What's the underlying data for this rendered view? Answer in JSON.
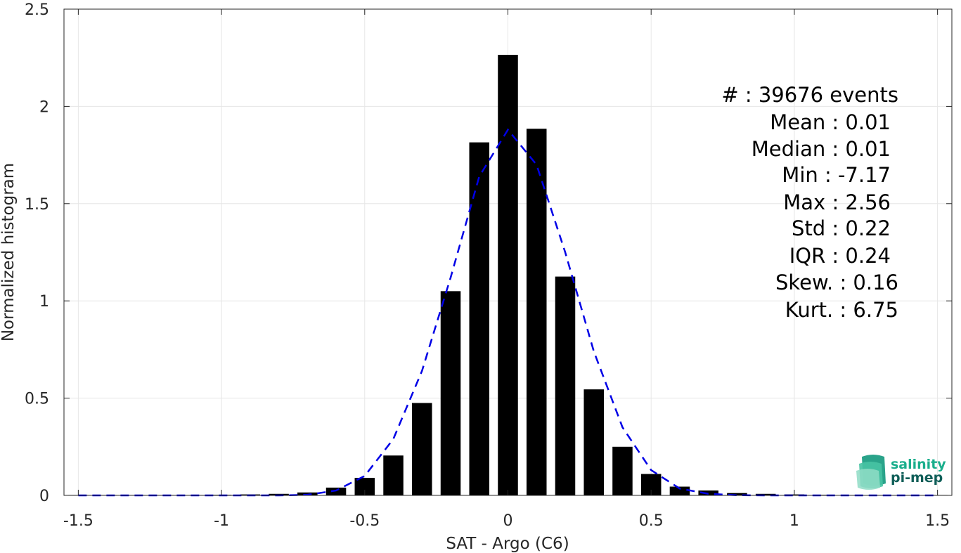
{
  "chart_data": {
    "type": "bar",
    "xlabel": "SAT - Argo (C6)",
    "ylabel": "Normalized histogram",
    "xlim": [
      -1.55,
      1.55
    ],
    "ylim": [
      0,
      2.5
    ],
    "xticks": [
      -1.5,
      -1,
      -0.5,
      0,
      0.5,
      1,
      1.5
    ],
    "xtick_labels": [
      "-1.5",
      "-1",
      "-0.5",
      "0",
      "0.5",
      "1",
      "1.5"
    ],
    "yticks": [
      0,
      0.5,
      1,
      1.5,
      2,
      2.5
    ],
    "ytick_labels": [
      "0",
      "0.5",
      "1",
      "1.5",
      "2",
      "2.5"
    ],
    "grid": true,
    "bar_color": "#000000",
    "bar_width": 0.07,
    "bars": {
      "x": [
        -1.5,
        -1.4,
        -1.3,
        -1.2,
        -1.1,
        -1.0,
        -0.9,
        -0.8,
        -0.7,
        -0.6,
        -0.5,
        -0.4,
        -0.3,
        -0.2,
        -0.1,
        0.0,
        0.1,
        0.2,
        0.3,
        0.4,
        0.5,
        0.6,
        0.7,
        0.8,
        0.9,
        1.0,
        1.1,
        1.2,
        1.3,
        1.4,
        1.5
      ],
      "values": [
        0.002,
        0.002,
        0.002,
        0.002,
        0.002,
        0.003,
        0.005,
        0.008,
        0.015,
        0.04,
        0.09,
        0.205,
        0.475,
        1.05,
        1.815,
        2.265,
        1.885,
        1.125,
        0.545,
        0.25,
        0.11,
        0.045,
        0.025,
        0.012,
        0.008,
        0.005,
        0.003,
        0.002,
        0.002,
        0.002,
        0.002
      ]
    },
    "fit_curve": {
      "style": "dashed",
      "color": "#0000e6",
      "x": [
        -1.5,
        -1.4,
        -1.3,
        -1.2,
        -1.1,
        -1.0,
        -0.9,
        -0.8,
        -0.7,
        -0.6,
        -0.5,
        -0.4,
        -0.3,
        -0.2,
        -0.1,
        0.0,
        0.1,
        0.2,
        0.3,
        0.4,
        0.5,
        0.6,
        0.7,
        0.8,
        0.9,
        1.0,
        1.1,
        1.2,
        1.3,
        1.4,
        1.5
      ],
      "y": [
        0.0,
        0.0,
        0.0,
        0.0,
        0.0,
        0.0,
        0.0,
        0.0,
        0.003,
        0.025,
        0.1,
        0.29,
        0.64,
        1.12,
        1.64,
        1.88,
        1.7,
        1.25,
        0.74,
        0.35,
        0.13,
        0.035,
        0.008,
        0.001,
        0.0,
        0.0,
        0.0,
        0.0,
        0.0,
        0.0,
        0.0
      ]
    }
  },
  "stats": [
    {
      "label": "#  : 39676 events"
    },
    {
      "label": "Mean : 0.01"
    },
    {
      "label": "Median : 0.01"
    },
    {
      "label": "Min : -7.17"
    },
    {
      "label": "Max : 2.56"
    },
    {
      "label": "Std : 0.22"
    },
    {
      "label": "IQR : 0.24"
    },
    {
      "label": "Skew. : 0.16"
    },
    {
      "label": "Kurt. : 6.75"
    }
  ],
  "logo": {
    "line1": "salinity",
    "line2": "pi-mep",
    "color1": "#1aae8c",
    "color2": "#0f5e58"
  }
}
